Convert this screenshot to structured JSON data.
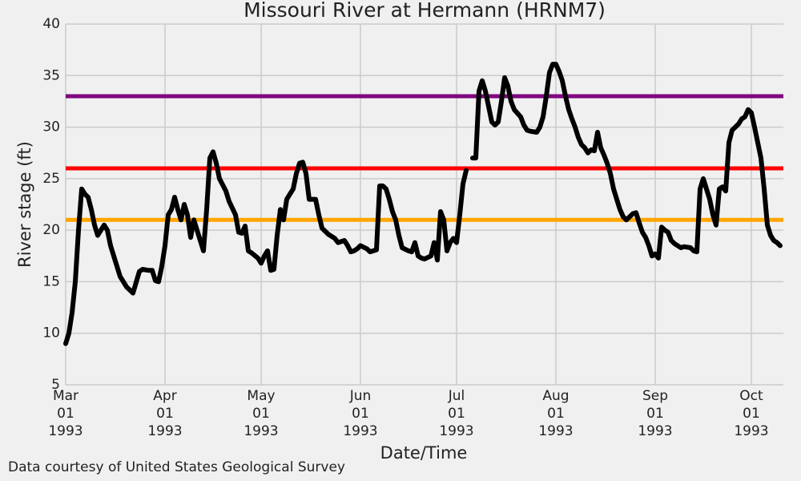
{
  "chart_data": {
    "type": "line",
    "title": "Missouri River at Hermann (HRNM7)",
    "xlabel": "Date/Time",
    "ylabel": "River stage (ft)",
    "footer": "Data courtesy of United States Geological Survey",
    "color": "#000000",
    "grid": true,
    "xlim": [
      "1993-03-01",
      "1993-10-11"
    ],
    "ylim": [
      5,
      40
    ],
    "yticks": [
      5,
      10,
      15,
      20,
      25,
      30,
      35,
      40
    ],
    "xticks": [
      {
        "value": "1993-03-01",
        "label": "Mar\n01\n1993"
      },
      {
        "value": "1993-04-01",
        "label": "Apr\n01\n1993"
      },
      {
        "value": "1993-05-01",
        "label": "May\n01\n1993"
      },
      {
        "value": "1993-06-01",
        "label": "Jun\n01\n1993"
      },
      {
        "value": "1993-07-01",
        "label": "Jul\n01\n1993"
      },
      {
        "value": "1993-08-01",
        "label": "Aug\n01\n1993"
      },
      {
        "value": "1993-09-01",
        "label": "Sep\n01\n1993"
      },
      {
        "value": "1993-10-01",
        "label": "Oct\n01\n1993"
      }
    ],
    "hlines": [
      {
        "value": 21,
        "color": "#ffa500"
      },
      {
        "value": 26,
        "color": "#ff0000"
      },
      {
        "value": 33,
        "color": "#800080"
      }
    ],
    "x": [
      "1993-03-01",
      "1993-03-02",
      "1993-03-03",
      "1993-03-04",
      "1993-03-05",
      "1993-03-06",
      "1993-03-07",
      "1993-03-08",
      "1993-03-09",
      "1993-03-10",
      "1993-03-11",
      "1993-03-13",
      "1993-03-14",
      "1993-03-15",
      "1993-03-16",
      "1993-03-18",
      "1993-03-19",
      "1993-03-20",
      "1993-03-21",
      "1993-03-22",
      "1993-03-24",
      "1993-03-25",
      "1993-03-27",
      "1993-03-28",
      "1993-03-29",
      "1993-03-30",
      "1993-03-31",
      "1993-04-01",
      "1993-04-02",
      "1993-04-03",
      "1993-04-04",
      "1993-04-05",
      "1993-04-06",
      "1993-04-07",
      "1993-04-08",
      "1993-04-09",
      "1993-04-10",
      "1993-04-11",
      "1993-04-12",
      "1993-04-13",
      "1993-04-14",
      "1993-04-15",
      "1993-04-16",
      "1993-04-17",
      "1993-04-18",
      "1993-04-20",
      "1993-04-21",
      "1993-04-23",
      "1993-04-24",
      "1993-04-25",
      "1993-04-26",
      "1993-04-27",
      "1993-04-28",
      "1993-04-30",
      "1993-05-01",
      "1993-05-02",
      "1993-05-03",
      "1993-05-04",
      "1993-05-05",
      "1993-05-06",
      "1993-05-07",
      "1993-05-08",
      "1993-05-09",
      "1993-05-10",
      "1993-05-11",
      "1993-05-12",
      "1993-05-13",
      "1993-05-14",
      "1993-05-15",
      "1993-05-16",
      "1993-05-18",
      "1993-05-19",
      "1993-05-20",
      "1993-05-22",
      "1993-05-24",
      "1993-05-25",
      "1993-05-27",
      "1993-05-28",
      "1993-05-29",
      "1993-05-30",
      "1993-05-31",
      "1993-06-01",
      "1993-06-03",
      "1993-06-04",
      "1993-06-05",
      "1993-06-06",
      "1993-06-07",
      "1993-06-08",
      "1993-06-09",
      "1993-06-10",
      "1993-06-11",
      "1993-06-12",
      "1993-06-13",
      "1993-06-14",
      "1993-06-16",
      "1993-06-17",
      "1993-06-18",
      "1993-06-19",
      "1993-06-20",
      "1993-06-21",
      "1993-06-23",
      "1993-06-24",
      "1993-06-25",
      "1993-06-26",
      "1993-06-27",
      "1993-06-28",
      "1993-06-29",
      "1993-06-30",
      "1993-07-01",
      "1993-07-02",
      "1993-07-03",
      "1993-07-04",
      "1993-07-05",
      "1993-07-06",
      "1993-07-07",
      "1993-07-08",
      "1993-07-09",
      "1993-07-10",
      "1993-07-11",
      "1993-07-12",
      "1993-07-13",
      "1993-07-14",
      "1993-07-15",
      "1993-07-16",
      "1993-07-17",
      "1993-07-18",
      "1993-07-19",
      "1993-07-21",
      "1993-07-22",
      "1993-07-23",
      "1993-07-24",
      "1993-07-26",
      "1993-07-27",
      "1993-07-28",
      "1993-07-29",
      "1993-07-30",
      "1993-07-31",
      "1993-08-01",
      "1993-08-02",
      "1993-08-03",
      "1993-08-04",
      "1993-08-05",
      "1993-08-06",
      "1993-08-07",
      "1993-08-08",
      "1993-08-09",
      "1993-08-10",
      "1993-08-11",
      "1993-08-12",
      "1993-08-13",
      "1993-08-14",
      "1993-08-15",
      "1993-08-16",
      "1993-08-17",
      "1993-08-18",
      "1993-08-19",
      "1993-08-20",
      "1993-08-21",
      "1993-08-22",
      "1993-08-23",
      "1993-08-25",
      "1993-08-26",
      "1993-08-27",
      "1993-08-28",
      "1993-08-29",
      "1993-08-30",
      "1993-08-31",
      "1993-09-01",
      "1993-09-02",
      "1993-09-03",
      "1993-09-04",
      "1993-09-05",
      "1993-09-06",
      "1993-09-07",
      "1993-09-09",
      "1993-09-10",
      "1993-09-12",
      "1993-09-13",
      "1993-09-14",
      "1993-09-15",
      "1993-09-16",
      "1993-09-17",
      "1993-09-18",
      "1993-09-19",
      "1993-09-20",
      "1993-09-21",
      "1993-09-22",
      "1993-09-23",
      "1993-09-24",
      "1993-09-25",
      "1993-09-26",
      "1993-09-27",
      "1993-09-28",
      "1993-09-29",
      "1993-09-30",
      "1993-10-01",
      "1993-10-02",
      "1993-10-03",
      "1993-10-04",
      "1993-10-05",
      "1993-10-06",
      "1993-10-07",
      "1993-10-08",
      "1993-10-09",
      "1993-10-10"
    ],
    "values": [
      9,
      10,
      12,
      15,
      20,
      24,
      23.5,
      23.2,
      22,
      20.5,
      19.5,
      20.5,
      20,
      18.5,
      17.5,
      15.5,
      15,
      14.5,
      14.2,
      13.9,
      16,
      16.2,
      16.1,
      16.1,
      15.1,
      15,
      16.5,
      18.5,
      21.5,
      22,
      23.2,
      22,
      21,
      22.5,
      21.5,
      19.3,
      21,
      20,
      19,
      18,
      22,
      27,
      27.6,
      26.5,
      25,
      23.8,
      22.8,
      21.5,
      19.8,
      19.7,
      20.4,
      18,
      17.8,
      17.3,
      16.8,
      17.5,
      18,
      16.1,
      16.2,
      19.5,
      22,
      21,
      23,
      23.5,
      24,
      25.5,
      26.5,
      26.6,
      25.5,
      23,
      23,
      21.5,
      20.2,
      19.6,
      19.2,
      18.8,
      19,
      18.5,
      17.9,
      18,
      18.2,
      18.5,
      18.2,
      17.9,
      18,
      18.1,
      24.3,
      24.3,
      24,
      23,
      21.8,
      21,
      19.5,
      18.3,
      18,
      17.9,
      18.8,
      17.5,
      17.3,
      17.2,
      17.5,
      18.8,
      17.1,
      21.8,
      21,
      18,
      18.8,
      19.2,
      18.8,
      21.5,
      24.5,
      25.8,
      null,
      27,
      27,
      33.5,
      34.5,
      33.5,
      32,
      30.5,
      30.2,
      30.5,
      32.5,
      34.8,
      34,
      32.5,
      31.7,
      31,
      30.2,
      29.7,
      29.6,
      29.5,
      30,
      31,
      33,
      35.3,
      36.1,
      36.1,
      35.4,
      34.5,
      33,
      31.7,
      30.8,
      30,
      29,
      28.3,
      28,
      27.5,
      27.8,
      27.7,
      29.5,
      28,
      27.3,
      26.5,
      25.5,
      24,
      23,
      22,
      21.3,
      21,
      21.6,
      21.7,
      20.7,
      19.8,
      19.3,
      18.5,
      17.5,
      17.7,
      17.3,
      20.3,
      20,
      19.8,
      19,
      18.7,
      18.3,
      18.4,
      18.3,
      18,
      17.9,
      24,
      25,
      24,
      23,
      21.5,
      20.5,
      24,
      24.2,
      23.8,
      28.5,
      29.7,
      30,
      30.3,
      30.8,
      31,
      31.7,
      31.4,
      30,
      28.5,
      27,
      24,
      20.5,
      19.5,
      19,
      18.8,
      18.5
    ]
  }
}
